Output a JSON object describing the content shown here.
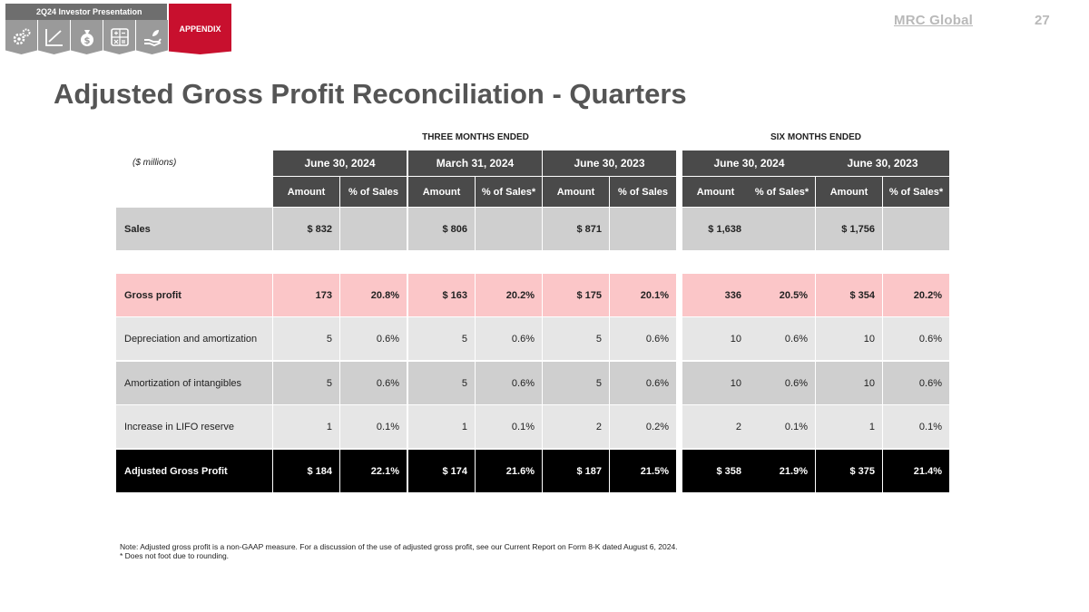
{
  "header": {
    "presentation_label": "2Q24  Investor Presentation",
    "appendix_tab": "APPENDIX",
    "logo_text": "MRC Global",
    "page_number": "27",
    "nav_icons": [
      "gears-icon",
      "chart-line-icon",
      "money-bag-icon",
      "calculator-icon",
      "hand-giving-icon"
    ]
  },
  "title": "Adjusted Gross Profit Reconciliation - Quarters",
  "groups": {
    "three_months": "THREE MONTHS ENDED",
    "six_months": "SIX MONTHS ENDED"
  },
  "units": "($ millions)",
  "periods": [
    {
      "label": "June 30, 2024",
      "c1": "Amount",
      "c2": "% of Sales"
    },
    {
      "label": "March 31, 2024",
      "c1": "Amount",
      "c2": "% of Sales*"
    },
    {
      "label": "June 30, 2023",
      "c1": "Amount",
      "c2": "% of Sales"
    },
    {
      "label": "June 30, 2024",
      "c1": "Amount",
      "c2": "% of Sales*"
    },
    {
      "label": "June 30, 2023",
      "c1": "Amount",
      "c2": "% of Sales*"
    }
  ],
  "rows": [
    {
      "label": "Sales",
      "values": [
        "$ 832",
        "",
        "$  806",
        "",
        "$ 871",
        "",
        "$ 1,638",
        "",
        "$ 1,756",
        ""
      ]
    },
    {
      "label": "Gross profit",
      "values": [
        "173",
        "20.8%",
        "$ 163",
        "20.2%",
        "$ 175",
        "20.1%",
        "336",
        "20.5%",
        "$ 354",
        "20.2%"
      ]
    },
    {
      "label": "Depreciation and amortization",
      "values": [
        "5",
        "0.6%",
        "5",
        "0.6%",
        "5",
        "0.6%",
        "10",
        "0.6%",
        "10",
        "0.6%"
      ]
    },
    {
      "label": "Amortization of intangibles",
      "values": [
        "5",
        "0.6%",
        "5",
        "0.6%",
        "5",
        "0.6%",
        "10",
        "0.6%",
        "10",
        "0.6%"
      ]
    },
    {
      "label": "Increase in LIFO reserve",
      "values": [
        "1",
        "0.1%",
        "1",
        "0.1%",
        "2",
        "0.2%",
        "2",
        "0.1%",
        "1",
        "0.1%"
      ]
    },
    {
      "label": "Adjusted Gross Profit",
      "values": [
        "$ 184",
        "22.1%",
        "$ 174",
        "21.6%",
        "$ 187",
        "21.5%",
        "$ 358",
        "21.9%",
        "$ 375",
        "21.4%"
      ]
    }
  ],
  "notes": {
    "line1": "Note: Adjusted gross profit is a non-GAAP measure. For a discussion of the use of adjusted gross profit, see our Current Report on Form 8-K dated August 6, 2024.",
    "line2": "* Does not foot due to rounding."
  },
  "colors": {
    "accent_red": "#c8102e",
    "header_gray": "#4a4a4a",
    "row_gray_dark": "#cfcfcf",
    "row_gray_light": "#e6e6e6",
    "row_pink": "#fbc6c8",
    "row_black": "#000000"
  }
}
